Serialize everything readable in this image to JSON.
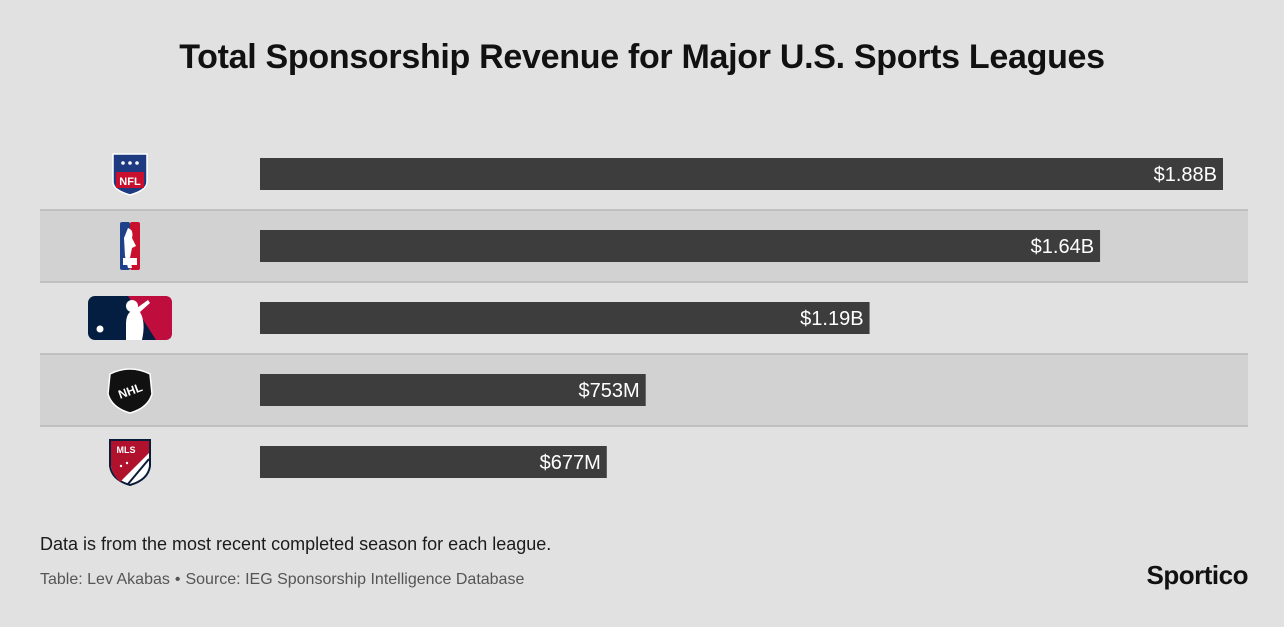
{
  "title": "Total Sponsorship Revenue for Major U.S. Sports Leagues",
  "footer": {
    "note": "Data is from the most recent completed season for each league.",
    "credit_table": "Table: Lev Akabas",
    "credit_separator": "•",
    "credit_source": "Source: IEG Sponsorship Intelligence Database",
    "brand": "Sportico"
  },
  "colors": {
    "bar": "#3d3d3d",
    "band_light": "#e1e1e1",
    "band_dark": "#d2d2d2",
    "nfl_blue": "#1e3a80",
    "nfl_red": "#c8102e",
    "nba_blue": "#1d428a",
    "nba_red": "#c8102e",
    "mlb_blue": "#041e42",
    "mlb_red": "#bf0d3e",
    "nhl_black": "#111111",
    "mls_navy": "#0b1c3a",
    "mls_red": "#b0122e"
  },
  "chart_data": {
    "type": "bar",
    "orientation": "horizontal",
    "categories": [
      "NFL",
      "NBA",
      "MLB",
      "NHL",
      "MLS"
    ],
    "category_icons": [
      "nfl-logo-icon",
      "nba-logo-icon",
      "mlb-logo-icon",
      "nhl-logo-icon",
      "mls-logo-icon"
    ],
    "values": [
      1880,
      1640,
      1190,
      753,
      677
    ],
    "value_unit": "million USD",
    "data_labels": [
      "$1.88B",
      "$1.64B",
      "$1.19B",
      "$753M",
      "$677M"
    ],
    "xlim": [
      0,
      1880
    ],
    "grid": false,
    "legend": "none"
  }
}
